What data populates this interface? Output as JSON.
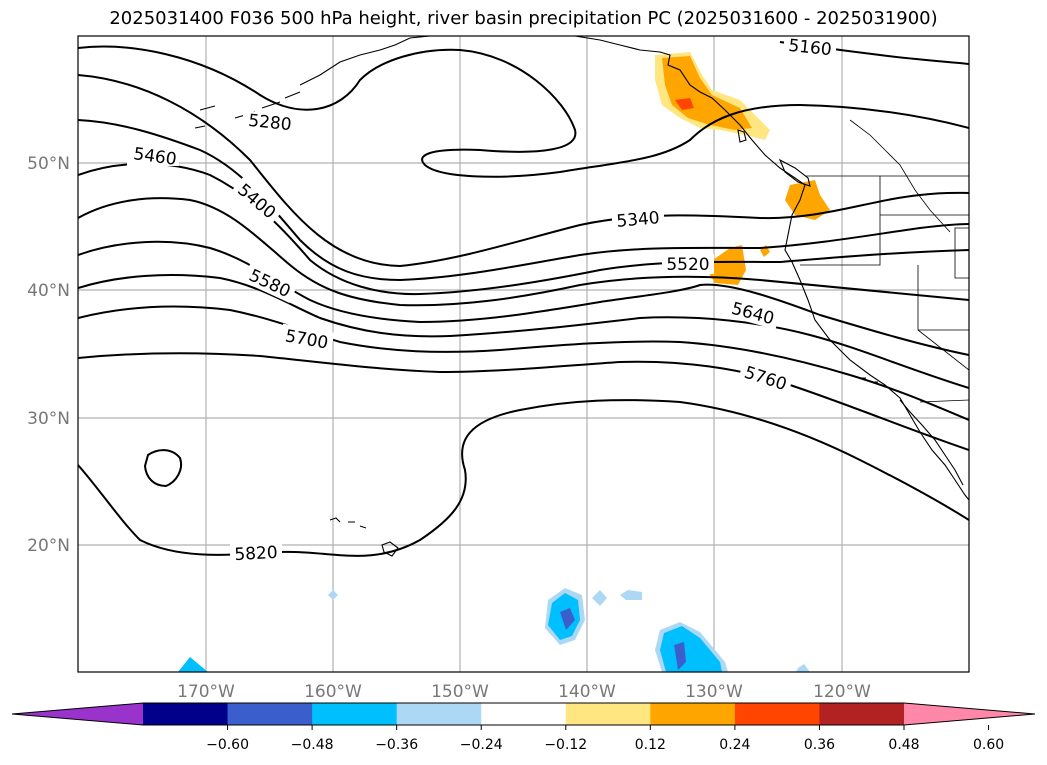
{
  "title": "2025031400 F036 500 hPa height, river basin precipitation PC (2025031600 - 2025031900)",
  "latitude_labels": [
    "50°N",
    "40°N",
    "30°N",
    "20°N"
  ],
  "longitude_labels": [
    "170°W",
    "160°W",
    "150°W",
    "140°W",
    "130°W",
    "120°W"
  ],
  "contour_labels": [
    "5160",
    "5280",
    "5460",
    "5400",
    "5340",
    "5520",
    "5580",
    "5640",
    "5700",
    "5760",
    "5820"
  ],
  "colorbar": {
    "tick_labels": [
      "−0.60",
      "−0.48",
      "−0.36",
      "−0.24",
      "−0.12",
      "0.12",
      "0.24",
      "0.36",
      "0.48",
      "0.60"
    ],
    "colors": [
      "#9933cc",
      "#00008b",
      "#3a5fcd",
      "#00bfff",
      "#add8f5",
      "#ffffff",
      "#ffe680",
      "#ffa500",
      "#ff4500",
      "#b22222",
      "#ff88a8"
    ]
  },
  "colors": {
    "gridline": "#b0b0b0",
    "contour": "#000000",
    "coast": "#000000"
  }
}
